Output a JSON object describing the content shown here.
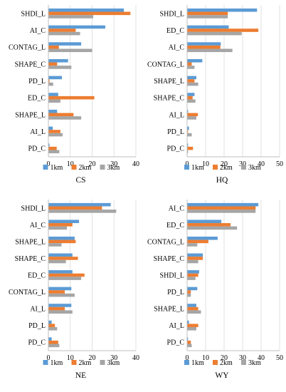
{
  "chart_data": [
    {
      "type": "bar",
      "orientation": "horizontal",
      "title": "CS",
      "categories": [
        "SHDI_L",
        "AI_C",
        "CONTAG_L",
        "SHAPE_C",
        "PD_L",
        "ED_C",
        "SHAPE_L",
        "AI_L",
        "PD_C"
      ],
      "series": [
        {
          "name": "1km",
          "values": [
            34.5,
            26.0,
            15.0,
            9.0,
            6.2,
            4.5,
            4.0,
            2.0,
            0.5
          ]
        },
        {
          "name": "2km",
          "values": [
            37.5,
            12.5,
            4.8,
            4.0,
            0.5,
            21.0,
            11.5,
            5.5,
            3.8
          ]
        },
        {
          "name": "3km",
          "values": [
            20.5,
            14.5,
            20.0,
            10.5,
            2.2,
            5.5,
            15.0,
            6.5,
            5.0
          ]
        }
      ],
      "xlim": [
        0,
        40
      ],
      "ticks": [
        0,
        10,
        20,
        30,
        40
      ],
      "grid": true,
      "legend": "bottom"
    },
    {
      "type": "bar",
      "orientation": "horizontal",
      "title": "HQ",
      "categories": [
        "SHDI_L",
        "ED_C",
        "AI_C",
        "CONTAG_L",
        "SHAPE_L",
        "SHAPE_C",
        "AI_L",
        "PD_L",
        "PD_C"
      ],
      "series": [
        {
          "name": "1km",
          "values": [
            37.8,
            22.5,
            18.2,
            8.2,
            5.0,
            4.0,
            0.5,
            1.0,
            0.5
          ]
        },
        {
          "name": "2km",
          "values": [
            22.0,
            38.5,
            18.0,
            2.5,
            4.0,
            3.0,
            5.8,
            0.5,
            3.2
          ]
        },
        {
          "name": "3km",
          "values": [
            22.0,
            29.5,
            24.5,
            4.0,
            6.0,
            4.5,
            5.0,
            2.5,
            0.5
          ]
        }
      ],
      "xlim": [
        0,
        50
      ],
      "ticks": [
        0,
        10,
        20,
        30,
        40,
        50
      ],
      "grid": true,
      "legend": "bottom"
    },
    {
      "type": "bar",
      "orientation": "horizontal",
      "title": "NE",
      "categories": [
        "SHDI_L",
        "AI_C",
        "SHAPE_L",
        "SHAPE_C",
        "ED_C",
        "CONTAG_L",
        "AI_L",
        "PD_L",
        "PD_C"
      ],
      "series": [
        {
          "name": "1km",
          "values": [
            28.5,
            14.0,
            12.0,
            11.0,
            11.0,
            10.5,
            10.5,
            1.5,
            1.5
          ]
        },
        {
          "name": "2km",
          "values": [
            24.5,
            11.0,
            12.5,
            13.5,
            16.5,
            7.5,
            7.5,
            3.0,
            4.5
          ]
        },
        {
          "name": "3km",
          "values": [
            31.0,
            8.5,
            6.0,
            8.0,
            15.0,
            12.0,
            11.0,
            4.0,
            5.0
          ]
        }
      ],
      "xlim": [
        0,
        40
      ],
      "ticks": [
        0,
        10,
        20,
        30,
        40
      ],
      "grid": true,
      "legend": "bottom"
    },
    {
      "type": "bar",
      "orientation": "horizontal",
      "title": "WY",
      "categories": [
        "AI_C",
        "ED_C",
        "CONTAG_L",
        "SHAPE_C",
        "SHDI_L",
        "PD_L",
        "SHAPE_L",
        "AI_L",
        "PD_C"
      ],
      "series": [
        {
          "name": "1km",
          "values": [
            38.5,
            18.5,
            16.5,
            8.5,
            6.5,
            5.5,
            5.0,
            1.0,
            0.5
          ]
        },
        {
          "name": "2km",
          "values": [
            37.0,
            23.5,
            11.5,
            8.5,
            6.0,
            2.0,
            6.0,
            6.0,
            2.0
          ]
        },
        {
          "name": "3km",
          "values": [
            37.0,
            27.0,
            5.5,
            6.0,
            4.5,
            2.0,
            7.5,
            5.0,
            2.5
          ]
        }
      ],
      "xlim": [
        0,
        50
      ],
      "ticks": [
        0,
        10,
        20,
        30,
        40,
        50
      ],
      "grid": true,
      "legend": "bottom"
    }
  ],
  "colors": {
    "series": [
      "#5b9bd5",
      "#ed7d31",
      "#a5a5a5"
    ],
    "grid": "#d9d9d9",
    "axis": "#bfbfbf"
  }
}
